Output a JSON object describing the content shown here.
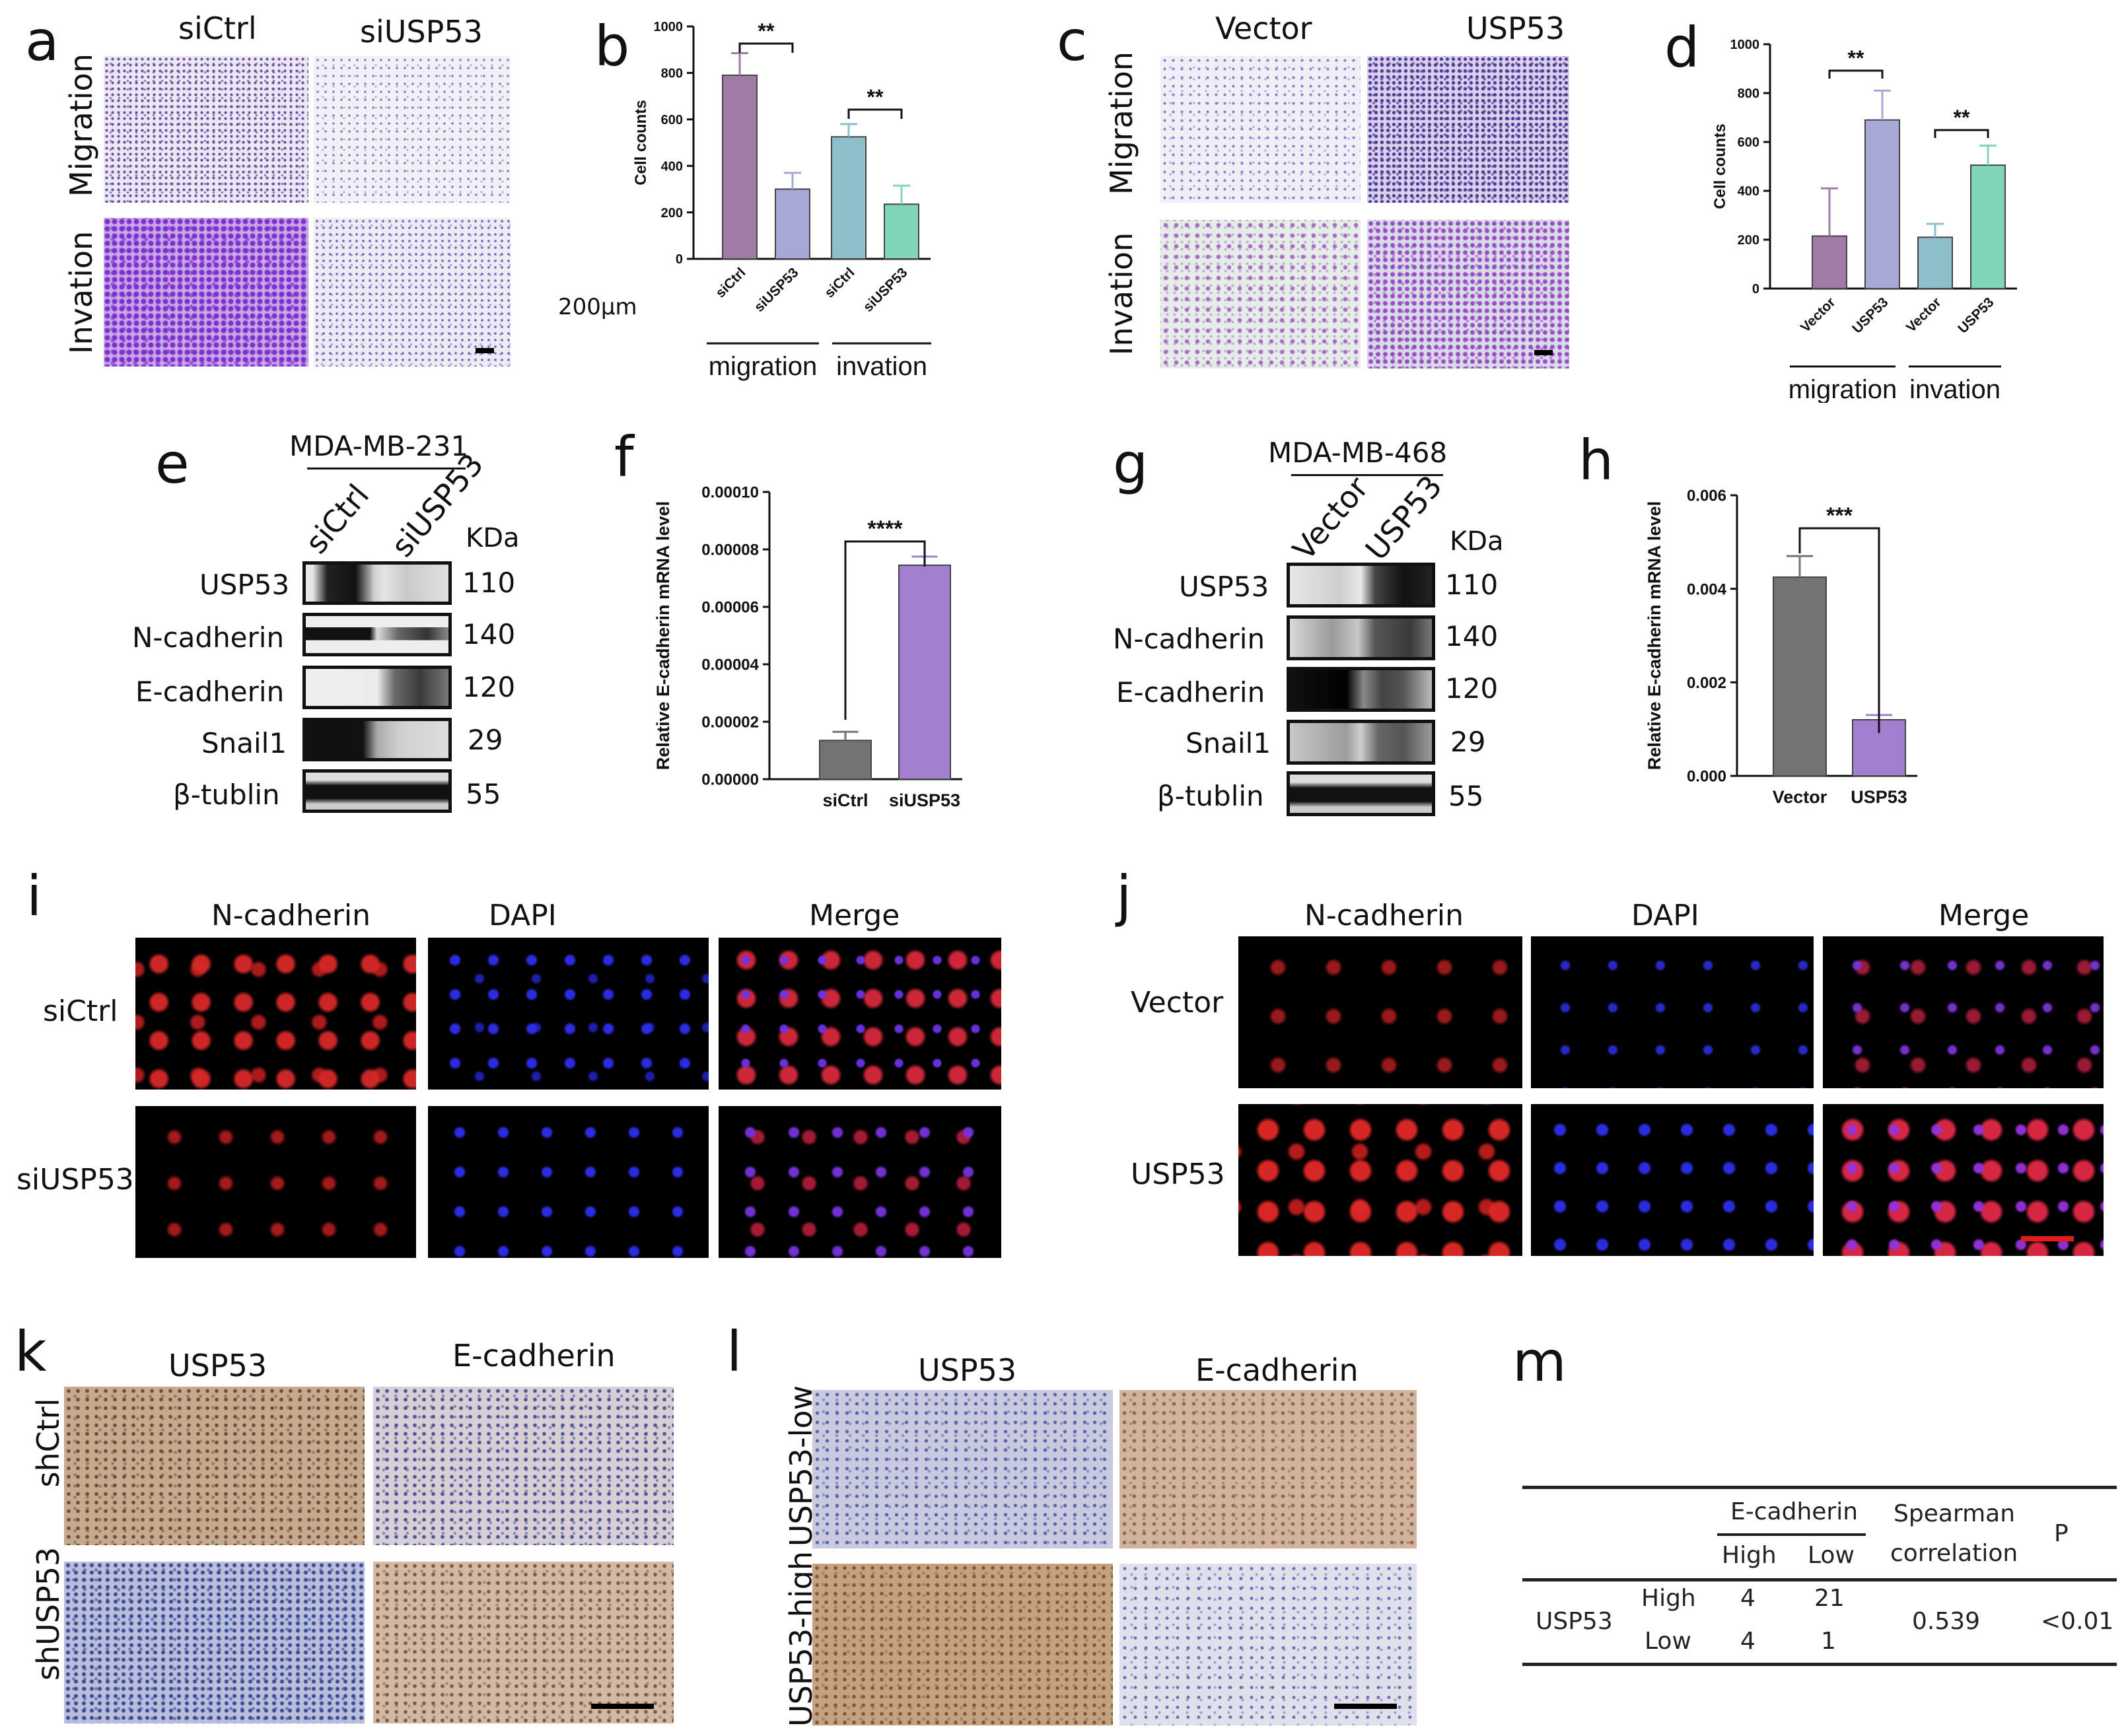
{
  "figure": {
    "letters": {
      "a": "a",
      "b": "b",
      "c": "c",
      "d": "d",
      "e": "e",
      "f": "f",
      "g": "g",
      "h": "h",
      "i": "i",
      "j": "j",
      "k": "k",
      "l": "l",
      "m": "m"
    },
    "panel_a": {
      "cols": [
        "siCtrl",
        "siUSP53"
      ],
      "rows": [
        "Migration",
        "Invation"
      ]
    },
    "panel_c": {
      "cols": [
        "Vector",
        "USP53"
      ],
      "rows": [
        "Migration",
        "Invation"
      ]
    },
    "scale_text": "200μm",
    "panel_e": {
      "cell_line": "MDA-MB-231",
      "lanes": [
        "siCtrl",
        "siUSP53"
      ],
      "kda": "KDa",
      "rows": [
        {
          "name": "USP53",
          "kda": "110"
        },
        {
          "name": "N-cadherin",
          "kda": "140"
        },
        {
          "name": "E-cadherin",
          "kda": "120"
        },
        {
          "name": "Snail1",
          "kda": "29"
        },
        {
          "name": "β-tublin",
          "kda": "55"
        }
      ]
    },
    "panel_g": {
      "cell_line": "MDA-MB-468",
      "lanes": [
        "Vector",
        "USP53"
      ],
      "kda": "KDa",
      "rows": [
        {
          "name": "USP53",
          "kda": "110"
        },
        {
          "name": "N-cadherin",
          "kda": "140"
        },
        {
          "name": "E-cadherin",
          "kda": "120"
        },
        {
          "name": "Snail1",
          "kda": "29"
        },
        {
          "name": "β-tublin",
          "kda": "55"
        }
      ]
    },
    "panel_i": {
      "cols": [
        "N-cadherin",
        "DAPI",
        "Merge"
      ],
      "rows": [
        "siCtrl",
        "siUSP53"
      ]
    },
    "panel_j": {
      "cols": [
        "N-cadherin",
        "DAPI",
        "Merge"
      ],
      "rows": [
        "Vector",
        "USP53"
      ]
    },
    "panel_k": {
      "cols": [
        "USP53",
        "E-cadherin"
      ],
      "rows": [
        "shCtrl",
        "shUSP53"
      ]
    },
    "panel_l": {
      "cols": [
        "USP53",
        "E-cadherin"
      ],
      "rows": [
        "USP53-low",
        "USP53-high"
      ]
    },
    "panel_m": {
      "header_group": "E-cadherin",
      "header_high": "High",
      "header_low": "Low",
      "spearman_1": "Spearman",
      "spearman_2": "correlation",
      "p": "P",
      "row_label": "USP53",
      "row1": "High",
      "row2": "Low",
      "v11": "4",
      "v12": "21",
      "v21": "4",
      "v22": "1",
      "corr": "0.539",
      "pval": "<0.01"
    },
    "colors": {
      "purple": "#a07ba6",
      "lilac": "#a8a8d8",
      "teal": "#8cbfc9",
      "mint": "#82d6b8",
      "gray": "#737373",
      "violet": "#a37fcf",
      "ifRed": "#d42a2a",
      "ifBlue": "#2a2aee"
    }
  },
  "chart_data": [
    {
      "type": "bar",
      "panel": "b",
      "ylabel": "Cell counts",
      "ylim": [
        0,
        1000
      ],
      "yticks": [
        0,
        200,
        400,
        600,
        800,
        1000
      ],
      "categories": [
        "siCtrl",
        "siUSP53",
        "siCtrl",
        "siUSP53"
      ],
      "values": [
        790,
        300,
        525,
        235
      ],
      "errors": [
        95,
        70,
        55,
        80
      ],
      "groups": [
        "migration",
        "invation"
      ],
      "significance": [
        "**",
        "**"
      ]
    },
    {
      "type": "bar",
      "panel": "d",
      "ylabel": "Cell counts",
      "ylim": [
        0,
        1000
      ],
      "yticks": [
        0,
        200,
        400,
        600,
        800,
        1000
      ],
      "categories": [
        "Vector",
        "USP53",
        "Vector",
        "USP53"
      ],
      "values": [
        215,
        690,
        210,
        505
      ],
      "errors": [
        195,
        120,
        55,
        80
      ],
      "groups": [
        "migration",
        "invation"
      ],
      "significance": [
        "**",
        "**"
      ]
    },
    {
      "type": "bar",
      "panel": "f",
      "ylabel": "Relative E-cadherin mRNA level",
      "ylim": [
        0,
        0.0001
      ],
      "yticks": [
        "0.00000",
        "0.00002",
        "0.00004",
        "0.00006",
        "0.00008",
        "0.00010"
      ],
      "categories": [
        "siCtrl",
        "siUSP53"
      ],
      "values": [
        1.35e-05,
        7.45e-05
      ],
      "errors": [
        3e-06,
        3e-06
      ],
      "significance": [
        "****"
      ]
    },
    {
      "type": "bar",
      "panel": "h",
      "ylabel": "Relative E-cadherin mRNA level",
      "ylim": [
        0,
        0.006
      ],
      "yticks": [
        "0.000",
        "0.002",
        "0.004",
        "0.006"
      ],
      "categories": [
        "Vector",
        "USP53"
      ],
      "values": [
        0.00425,
        0.0012
      ],
      "errors": [
        0.00045,
        0.0001
      ],
      "significance": [
        "***"
      ]
    }
  ]
}
